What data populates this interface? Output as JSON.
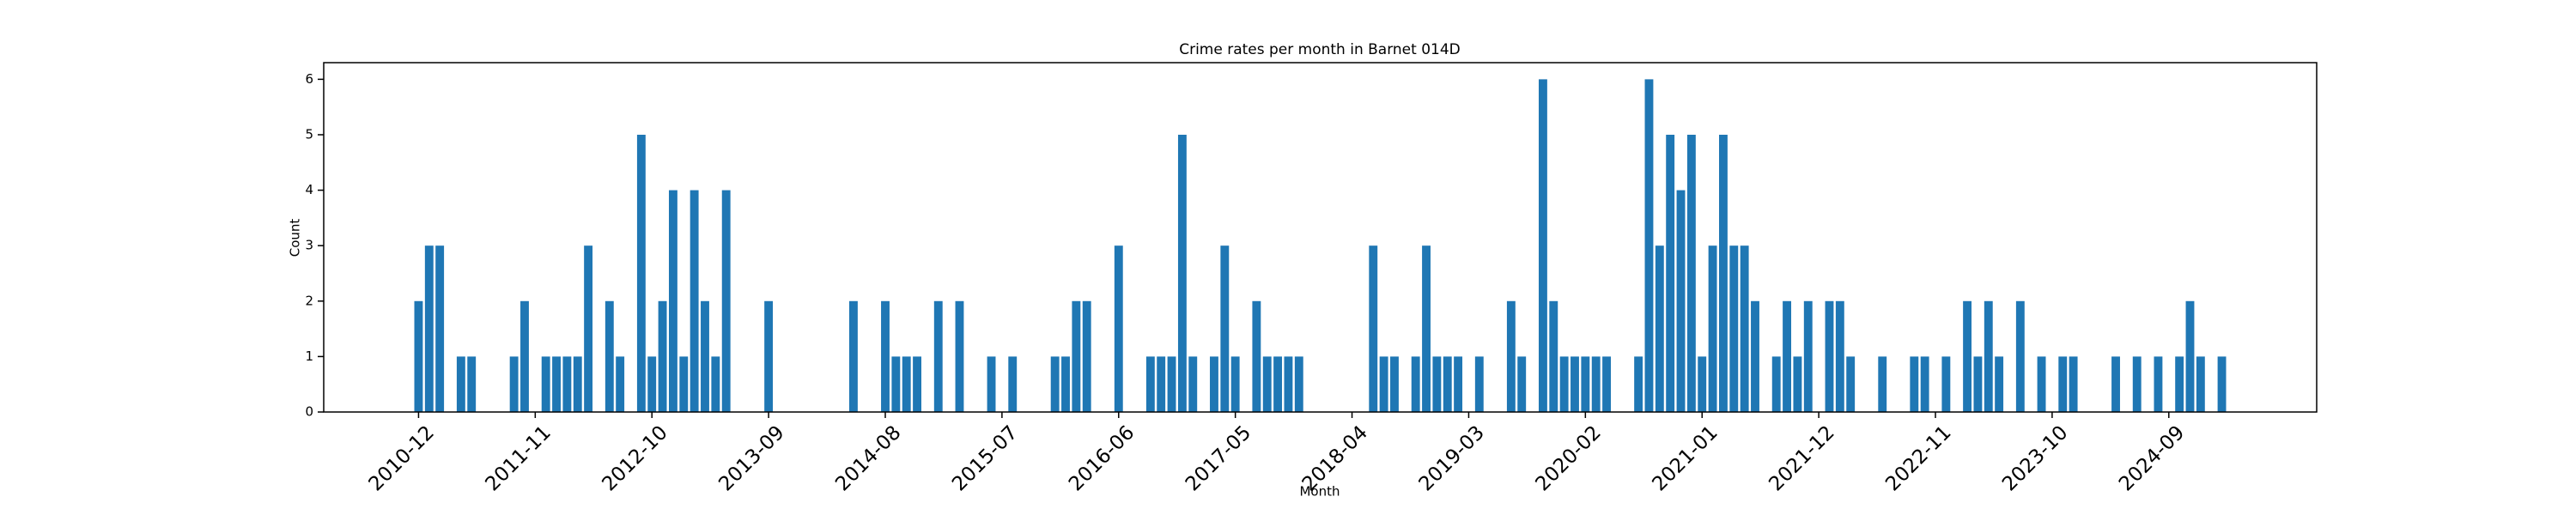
{
  "chart_data": {
    "type": "bar",
    "title": "Crime rates per month in Barnet 014D",
    "x_label": "Month",
    "y_label": "Count",
    "color": "#1f77b4",
    "categories": [
      "2010-12",
      null,
      null,
      null,
      null,
      null,
      null,
      null,
      null,
      null,
      null,
      "2011-11",
      null,
      null,
      null,
      null,
      null,
      null,
      null,
      null,
      null,
      null,
      "2012-10",
      null,
      null,
      null,
      null,
      null,
      null,
      null,
      null,
      null,
      null,
      "2013-09",
      null,
      null,
      null,
      null,
      null,
      null,
      null,
      null,
      null,
      null,
      "2014-08",
      null,
      null,
      null,
      null,
      null,
      null,
      null,
      null,
      null,
      null,
      "2015-07",
      null,
      null,
      null,
      null,
      null,
      null,
      null,
      null,
      null,
      null,
      "2016-06",
      null,
      null,
      null,
      null,
      null,
      null,
      null,
      null,
      null,
      null,
      "2017-05",
      null,
      null,
      null,
      null,
      null,
      null,
      null,
      null,
      null,
      null,
      "2018-04",
      null,
      null,
      null,
      null,
      null,
      null,
      null,
      null,
      null,
      null,
      "2019-03",
      null,
      null,
      null,
      null,
      null,
      null,
      null,
      null,
      null,
      null,
      "2020-02",
      null,
      null,
      null,
      null,
      null,
      null,
      null,
      null,
      null,
      null,
      "2021-01",
      null,
      null,
      null,
      null,
      null,
      null,
      null,
      null,
      null,
      null,
      "2021-12",
      null,
      null,
      null,
      null,
      null,
      null,
      null,
      null,
      null,
      null,
      "2022-11",
      null,
      null,
      null,
      null,
      null,
      null,
      null,
      null,
      null,
      null,
      "2023-10",
      null,
      null,
      null,
      null,
      null,
      null,
      null,
      null,
      null,
      null,
      "2024-09",
      null,
      null,
      null,
      null,
      null
    ],
    "values": [
      2,
      3,
      3,
      0,
      1,
      1,
      0,
      0,
      0,
      1,
      2,
      0,
      1,
      1,
      1,
      1,
      3,
      0,
      2,
      1,
      0,
      5,
      1,
      2,
      4,
      1,
      4,
      2,
      1,
      4,
      0,
      0,
      0,
      2,
      0,
      0,
      0,
      0,
      0,
      0,
      0,
      2,
      0,
      0,
      2,
      1,
      1,
      1,
      0,
      2,
      0,
      2,
      0,
      0,
      1,
      0,
      1,
      0,
      0,
      0,
      1,
      1,
      2,
      2,
      0,
      0,
      3,
      0,
      0,
      1,
      1,
      1,
      5,
      1,
      0,
      1,
      3,
      1,
      0,
      2,
      1,
      1,
      1,
      1,
      0,
      0,
      0,
      0,
      0,
      0,
      3,
      1,
      1,
      0,
      1,
      3,
      1,
      1,
      1,
      0,
      1,
      0,
      0,
      2,
      1,
      0,
      6,
      2,
      1,
      1,
      1,
      1,
      1,
      0,
      0,
      1,
      6,
      3,
      5,
      4,
      5,
      1,
      3,
      5,
      3,
      3,
      2,
      0,
      1,
      2,
      1,
      2,
      0,
      2,
      2,
      1,
      0,
      0,
      1,
      0,
      0,
      1,
      1,
      0,
      1,
      0,
      2,
      1,
      2,
      1,
      0,
      2,
      0,
      1,
      0,
      1,
      1,
      0,
      0,
      0,
      1,
      0,
      1,
      0,
      1,
      0,
      1,
      2,
      1,
      0,
      1
    ],
    "ylim": [
      0,
      6.3
    ],
    "yticks": [
      0,
      1,
      2,
      3,
      4,
      5,
      6
    ]
  }
}
